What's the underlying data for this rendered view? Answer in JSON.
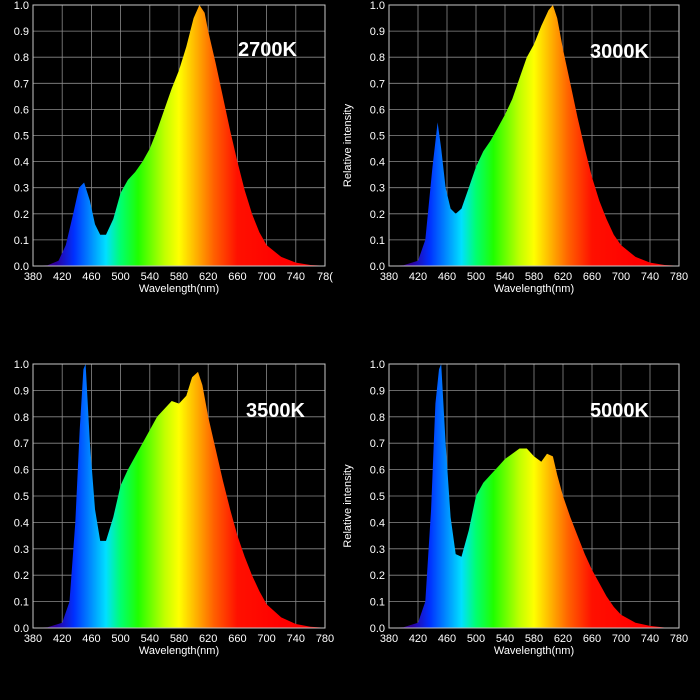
{
  "chart_data": [
    {
      "type": "area",
      "title": "2700K",
      "xlabel": "Wavelength(nm)",
      "ylabel": "",
      "xlim": [
        380,
        780
      ],
      "ylim": [
        0,
        1
      ],
      "x_ticks": [
        "380",
        "420",
        "460",
        "500",
        "540",
        "580",
        "620",
        "660",
        "700",
        "740",
        "78("
      ],
      "y_ticks": [
        "0.0",
        "0.1",
        "0.2",
        "0.3",
        "0.4",
        "0.5",
        "0.6",
        "0.7",
        "0.8",
        "0.9",
        "1.0"
      ],
      "series": [
        {
          "x": [
            380,
            400,
            415,
            425,
            435,
            443,
            450,
            458,
            465,
            472,
            480,
            490,
            500,
            510,
            520,
            530,
            540,
            550,
            560,
            570,
            580,
            590,
            600,
            608,
            615,
            620,
            630,
            640,
            650,
            660,
            670,
            680,
            690,
            700,
            720,
            740,
            760,
            780
          ],
          "values": [
            0,
            0.003,
            0.02,
            0.08,
            0.2,
            0.3,
            0.32,
            0.25,
            0.16,
            0.12,
            0.12,
            0.18,
            0.28,
            0.33,
            0.36,
            0.4,
            0.45,
            0.52,
            0.6,
            0.68,
            0.75,
            0.84,
            0.95,
            1.0,
            0.97,
            0.9,
            0.78,
            0.65,
            0.52,
            0.4,
            0.29,
            0.2,
            0.13,
            0.08,
            0.035,
            0.013,
            0.004,
            0.001
          ]
        }
      ]
    },
    {
      "type": "area",
      "title": "3000K",
      "xlabel": "Wavelength(nm)",
      "ylabel": "Relative intensity",
      "xlim": [
        380,
        780
      ],
      "ylim": [
        0,
        1
      ],
      "x_ticks": [
        "380",
        "420",
        "460",
        "500",
        "540",
        "580",
        "620",
        "660",
        "700",
        "740",
        "780"
      ],
      "y_ticks": [
        "0.0",
        "0.1",
        "0.2",
        "0.3",
        "0.4",
        "0.5",
        "0.6",
        "0.7",
        "0.8",
        "0.9",
        "1.0"
      ],
      "series": [
        {
          "x": [
            380,
            400,
            420,
            430,
            440,
            447,
            452,
            458,
            465,
            472,
            480,
            490,
            500,
            510,
            520,
            530,
            540,
            550,
            560,
            570,
            580,
            590,
            600,
            606,
            612,
            620,
            630,
            640,
            650,
            660,
            670,
            680,
            690,
            700,
            720,
            740,
            760,
            780
          ],
          "values": [
            0,
            0.003,
            0.02,
            0.1,
            0.38,
            0.55,
            0.45,
            0.3,
            0.22,
            0.2,
            0.22,
            0.3,
            0.38,
            0.44,
            0.48,
            0.53,
            0.58,
            0.64,
            0.72,
            0.8,
            0.85,
            0.92,
            0.98,
            1.0,
            0.95,
            0.83,
            0.7,
            0.57,
            0.45,
            0.34,
            0.25,
            0.18,
            0.12,
            0.08,
            0.035,
            0.013,
            0.004,
            0.001
          ]
        }
      ]
    },
    {
      "type": "area",
      "title": "3500K",
      "xlabel": "Wavelength(nm)",
      "ylabel": "",
      "xlim": [
        380,
        780
      ],
      "ylim": [
        0,
        1
      ],
      "x_ticks": [
        "380",
        "420",
        "460",
        "500",
        "540",
        "580",
        "620",
        "660",
        "700",
        "740",
        "780"
      ],
      "y_ticks": [
        "0.0",
        "0.1",
        "0.2",
        "0.3",
        "0.4",
        "0.5",
        "0.6",
        "0.7",
        "0.8",
        "0.9",
        "1.0"
      ],
      "series": [
        {
          "x": [
            380,
            400,
            420,
            430,
            438,
            444,
            449,
            452,
            458,
            465,
            472,
            480,
            490,
            500,
            510,
            520,
            530,
            540,
            550,
            560,
            570,
            580,
            590,
            598,
            606,
            612,
            620,
            630,
            640,
            650,
            660,
            670,
            680,
            690,
            700,
            720,
            740,
            760,
            780
          ],
          "values": [
            0,
            0.003,
            0.02,
            0.1,
            0.4,
            0.75,
            0.98,
            1.0,
            0.7,
            0.45,
            0.33,
            0.33,
            0.42,
            0.54,
            0.6,
            0.65,
            0.7,
            0.75,
            0.8,
            0.83,
            0.86,
            0.85,
            0.88,
            0.95,
            0.97,
            0.92,
            0.8,
            0.68,
            0.56,
            0.45,
            0.35,
            0.27,
            0.2,
            0.14,
            0.09,
            0.04,
            0.015,
            0.005,
            0.001
          ]
        }
      ]
    },
    {
      "type": "area",
      "title": "5000K",
      "xlabel": "Wavelength(nm)",
      "ylabel": "Relative intensity",
      "xlim": [
        380,
        780
      ],
      "ylim": [
        0,
        1
      ],
      "x_ticks": [
        "380",
        "420",
        "460",
        "500",
        "540",
        "580",
        "620",
        "660",
        "700",
        "740",
        "780"
      ],
      "y_ticks": [
        "0.0",
        "0.1",
        "0.2",
        "0.3",
        "0.4",
        "0.5",
        "0.6",
        "0.7",
        "0.8",
        "0.9",
        "1.0"
      ],
      "series": [
        {
          "x": [
            380,
            400,
            420,
            430,
            438,
            444,
            449,
            452,
            458,
            465,
            472,
            480,
            490,
            500,
            510,
            520,
            530,
            540,
            550,
            560,
            570,
            580,
            590,
            598,
            606,
            612,
            620,
            630,
            640,
            650,
            660,
            670,
            680,
            690,
            700,
            720,
            740,
            760,
            780
          ],
          "values": [
            0,
            0.003,
            0.02,
            0.1,
            0.45,
            0.85,
            0.98,
            1.0,
            0.7,
            0.42,
            0.28,
            0.27,
            0.37,
            0.5,
            0.55,
            0.58,
            0.61,
            0.64,
            0.66,
            0.68,
            0.68,
            0.65,
            0.63,
            0.66,
            0.65,
            0.58,
            0.5,
            0.42,
            0.35,
            0.28,
            0.22,
            0.17,
            0.12,
            0.08,
            0.05,
            0.02,
            0.008,
            0.002,
            0.001
          ]
        }
      ]
    }
  ]
}
